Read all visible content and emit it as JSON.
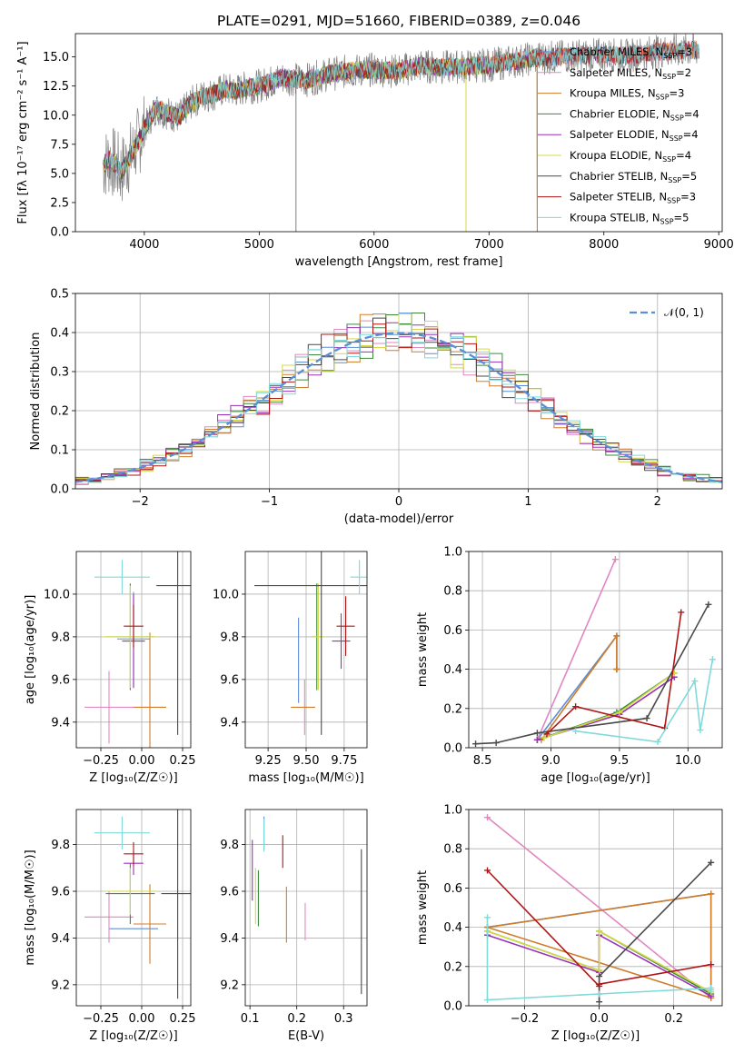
{
  "figure": {
    "title": "PLATE=0291, MJD=51660, FIBERID=0389, z=0.046"
  },
  "colors": {
    "Chabrier MILES": "#5b8ed6",
    "Salpeter MILES": "#e088c0",
    "Kroupa MILES": "#cf7d2c",
    "Chabrier ELODIE": "#3d8a3d",
    "Salpeter ELODIE": "#9b30b8",
    "Kroupa ELODIE": "#d4d94a",
    "Chabrier STELIB": "#4a4a4a",
    "Salpeter STELIB": "#b01616",
    "Kroupa STELIB": "#7fdada"
  },
  "chart_data": [
    {
      "type": "line",
      "title": "PLATE=0291, MJD=51660, FIBERID=0389, z=0.046",
      "xlabel": "wavelength [Angstrom, rest frame]",
      "ylabel": "Flux [fλ 10⁻¹⁷ erg cm⁻² s⁻¹ A⁻¹]",
      "xlim": [
        3400,
        9030
      ],
      "ylim": [
        0,
        17
      ],
      "xticks": [
        "4000",
        "5000",
        "6000",
        "7000",
        "8000",
        "9000"
      ],
      "yticks": [
        "0.0",
        "2.5",
        "5.0",
        "7.5",
        "10.0",
        "12.5",
        "15.0"
      ],
      "legend": "top-right",
      "spectrum_x": [
        3650,
        3700,
        3800,
        3900,
        4000,
        4100,
        4200,
        4300,
        4400,
        4500,
        4600,
        4700,
        4800,
        4900,
        5000,
        5200,
        5400,
        5600,
        5800,
        6000,
        6200,
        6400,
        6600,
        6800,
        7000,
        7200,
        7400,
        7600,
        7800,
        8000,
        8200,
        8400,
        8600,
        8800
      ],
      "spectrum_y": [
        5.8,
        6.2,
        5.2,
        6.8,
        8.8,
        10.6,
        10.2,
        9.8,
        11.0,
        11.6,
        11.8,
        12.2,
        12.1,
        12.4,
        12.5,
        13.2,
        13.0,
        13.5,
        13.8,
        13.9,
        13.8,
        14.2,
        14.1,
        14.2,
        14.3,
        14.6,
        14.9,
        15.0,
        15.1,
        15.2,
        15.1,
        15.4,
        15.5,
        15.6
      ],
      "model_end": 7420,
      "series": [
        {
          "name": "Chabrier MILES",
          "nssp": "3"
        },
        {
          "name": "Salpeter MILES",
          "nssp": "2"
        },
        {
          "name": "Kroupa MILES",
          "nssp": "3"
        },
        {
          "name": "Chabrier ELODIE",
          "nssp": "4"
        },
        {
          "name": "Salpeter ELODIE",
          "nssp": "4"
        },
        {
          "name": "Kroupa ELODIE",
          "nssp": "4"
        },
        {
          "name": "Chabrier STELIB",
          "nssp": "5"
        },
        {
          "name": "Salpeter STELIB",
          "nssp": "3"
        },
        {
          "name": "Kroupa STELIB",
          "nssp": "5"
        }
      ]
    },
    {
      "type": "histogram",
      "xlabel": "(data-model)/error",
      "ylabel": "Normed distribution",
      "xlim": [
        -2.5,
        2.5
      ],
      "ylim": [
        0,
        0.5
      ],
      "xticks": [
        "−2",
        "−1",
        "0",
        "1",
        "2"
      ],
      "yticks": [
        "0.0",
        "0.1",
        "0.2",
        "0.3",
        "0.4",
        "0.5"
      ],
      "legend_label": "𝒩(0, 1)",
      "bin_width": 0.1
    },
    {
      "type": "scatter",
      "xlabel": "Z [log₁₀(Z/Z☉)]",
      "ylabel": "age  [log₁₀(age/yr)]",
      "xlim": [
        -0.4,
        0.3
      ],
      "ylim": [
        9.28,
        10.2
      ],
      "xticks": [
        "−0.25",
        "0.00",
        "0.25"
      ],
      "yticks": [
        "9.4",
        "9.6",
        "9.8",
        "10.0"
      ],
      "points": [
        {
          "series": "Chabrier MILES",
          "x": -0.05,
          "y": 9.79,
          "xerr": 0.1,
          "yerr": 0.22
        },
        {
          "series": "Salpeter MILES",
          "x": -0.2,
          "y": 9.47,
          "xerr": 0.15,
          "yerr": 0.17
        },
        {
          "series": "Kroupa MILES",
          "x": 0.05,
          "y": 9.47,
          "xerr": 0.1,
          "yerr": 0.35
        },
        {
          "series": "Chabrier ELODIE",
          "x": -0.07,
          "y": 9.8,
          "xerr": 0.15,
          "yerr": 0.25
        },
        {
          "series": "Salpeter ELODIE",
          "x": -0.05,
          "y": 9.78,
          "xerr": 0.07,
          "yerr": 0.22
        },
        {
          "series": "Kroupa ELODIE",
          "x": -0.07,
          "y": 9.8,
          "xerr": 0.17,
          "yerr": 0.24
        },
        {
          "series": "Chabrier STELIB",
          "x": 0.22,
          "y": 10.04,
          "xerr": 0.13,
          "yerr": 0.7
        },
        {
          "series": "Salpeter STELIB",
          "x": -0.05,
          "y": 9.85,
          "xerr": 0.06,
          "yerr": 0.1
        },
        {
          "series": "Kroupa STELIB",
          "x": -0.12,
          "y": 10.08,
          "xerr": 0.17,
          "yerr": 0.08
        }
      ]
    },
    {
      "type": "scatter",
      "xlabel": "mass [log₁₀(M/M☉)]",
      "ylabel": "",
      "xlim": [
        9.1,
        9.9
      ],
      "ylim": [
        9.28,
        10.2
      ],
      "xticks": [
        "9.25",
        "9.50",
        "9.75"
      ],
      "yticks": [
        "9.4",
        "9.6",
        "9.8",
        "10.0"
      ],
      "points": [
        {
          "series": "Chabrier MILES",
          "x": 9.45,
          "y": 9.69,
          "xerr": 0.0,
          "yerr": 0.2
        },
        {
          "series": "Salpeter MILES",
          "x": 9.49,
          "y": 9.47,
          "xerr": 0.0,
          "yerr": 0.13
        },
        {
          "series": "Kroupa MILES",
          "x": 9.48,
          "y": 9.47,
          "xerr": 0.08,
          "yerr": 0.0
        },
        {
          "series": "Chabrier ELODIE",
          "x": 9.57,
          "y": 9.8,
          "xerr": 0.03,
          "yerr": 0.25
        },
        {
          "series": "Salpeter ELODIE",
          "x": 9.73,
          "y": 9.78,
          "xerr": 0.06,
          "yerr": 0.13
        },
        {
          "series": "Kroupa ELODIE",
          "x": 9.58,
          "y": 9.8,
          "xerr": 0.04,
          "yerr": 0.25
        },
        {
          "series": "Chabrier STELIB",
          "x": 9.6,
          "y": 10.04,
          "xerr": 0.44,
          "yerr": 0.7
        },
        {
          "series": "Salpeter STELIB",
          "x": 9.76,
          "y": 9.85,
          "xerr": 0.06,
          "yerr": 0.14
        },
        {
          "series": "Kroupa STELIB",
          "x": 9.85,
          "y": 10.08,
          "xerr": 0.06,
          "yerr": 0.08
        }
      ]
    },
    {
      "type": "line",
      "xlabel": "age  [log₁₀(age/yr)]",
      "ylabel": "mass weight",
      "xlim": [
        8.4,
        10.25
      ],
      "ylim": [
        0,
        1.0
      ],
      "xticks": [
        "8.5",
        "9.0",
        "9.5",
        "10.0"
      ],
      "yticks": [
        "0.0",
        "0.2",
        "0.4",
        "0.6",
        "0.8",
        "1.0"
      ],
      "series": [
        {
          "name": "Chabrier MILES",
          "x": [
            8.9,
            9.48,
            9.48,
            9.48
          ],
          "y": [
            0.04,
            0.57,
            0.4,
            0.4
          ]
        },
        {
          "name": "Salpeter MILES",
          "x": [
            8.9,
            9.47
          ],
          "y": [
            0.04,
            0.96
          ]
        },
        {
          "name": "Kroupa MILES",
          "x": [
            8.93,
            9.48,
            9.48,
            9.48
          ],
          "y": [
            0.04,
            0.57,
            0.4,
            0.4
          ]
        },
        {
          "name": "Chabrier ELODIE",
          "x": [
            8.9,
            9.48,
            9.9
          ],
          "y": [
            0.04,
            0.18,
            0.38
          ]
        },
        {
          "name": "Salpeter ELODIE",
          "x": [
            8.9,
            9.5,
            9.9
          ],
          "y": [
            0.04,
            0.17,
            0.36
          ]
        },
        {
          "name": "Kroupa ELODIE",
          "x": [
            8.95,
            9.5,
            9.9
          ],
          "y": [
            0.05,
            0.18,
            0.38
          ]
        },
        {
          "name": "Chabrier STELIB",
          "x": [
            8.45,
            8.6,
            8.9,
            9.7,
            10.15
          ],
          "y": [
            0.02,
            0.025,
            0.075,
            0.15,
            0.73
          ]
        },
        {
          "name": "Salpeter STELIB",
          "x": [
            8.97,
            9.18,
            9.83,
            9.95
          ],
          "y": [
            0.07,
            0.21,
            0.1,
            0.69
          ]
        },
        {
          "name": "Kroupa STELIB",
          "x": [
            9.18,
            9.78,
            10.05,
            10.09,
            10.18
          ],
          "y": [
            0.085,
            0.03,
            0.34,
            0.09,
            0.45
          ]
        }
      ]
    },
    {
      "type": "scatter",
      "xlabel": "Z [log₁₀(Z/Z☉)]",
      "ylabel": "mass [log₁₀(M/M☉)]",
      "xlim": [
        -0.4,
        0.3
      ],
      "ylim": [
        9.11,
        9.95
      ],
      "xticks": [
        "−0.25",
        "0.00",
        "0.25"
      ],
      "yticks": [
        "9.2",
        "9.4",
        "9.6",
        "9.8"
      ],
      "points": [
        {
          "series": "Chabrier MILES",
          "x": -0.05,
          "y": 9.44,
          "xerr": 0.15,
          "yerr": 0.0
        },
        {
          "series": "Salpeter MILES",
          "x": -0.2,
          "y": 9.49,
          "xerr": 0.15,
          "yerr": 0.11
        },
        {
          "series": "Kroupa MILES",
          "x": 0.05,
          "y": 9.46,
          "xerr": 0.1,
          "yerr": 0.17
        },
        {
          "series": "Chabrier ELODIE",
          "x": -0.07,
          "y": 9.59,
          "xerr": 0.15,
          "yerr": 0.13
        },
        {
          "series": "Salpeter ELODIE",
          "x": -0.05,
          "y": 9.72,
          "xerr": 0.06,
          "yerr": 0.05
        },
        {
          "series": "Kroupa ELODIE",
          "x": -0.07,
          "y": 9.6,
          "xerr": 0.16,
          "yerr": 0.1
        },
        {
          "series": "Chabrier STELIB",
          "x": 0.22,
          "y": 9.59,
          "xerr": 0.1,
          "yerr": 0.45
        },
        {
          "series": "Salpeter STELIB",
          "x": -0.05,
          "y": 9.76,
          "xerr": 0.06,
          "yerr": 0.05
        },
        {
          "series": "Kroupa STELIB",
          "x": -0.12,
          "y": 9.85,
          "xerr": 0.17,
          "yerr": 0.07
        }
      ]
    },
    {
      "type": "scatter",
      "xlabel": "E(B-V)",
      "ylabel": "",
      "xlim": [
        0.09,
        0.35
      ],
      "ylim": [
        9.11,
        9.95
      ],
      "xticks": [
        "0.1",
        "0.2",
        "0.3"
      ],
      "yticks": [
        "9.2",
        "9.4",
        "9.6",
        "9.8"
      ],
      "points": [
        {
          "series": "Chabrier MILES",
          "x": 0.13,
          "y": 9.85,
          "xerr": 0.0,
          "yerr": 0.07
        },
        {
          "series": "Salpeter MILES",
          "x": 0.218,
          "y": 9.47,
          "xerr": 0.0,
          "yerr": 0.08
        },
        {
          "series": "Kroupa MILES",
          "x": 0.178,
          "y": 9.5,
          "xerr": 0.0,
          "yerr": 0.12
        },
        {
          "series": "Chabrier ELODIE",
          "x": 0.118,
          "y": 9.57,
          "xerr": 0.0,
          "yerr": 0.12
        },
        {
          "series": "Salpeter ELODIE",
          "x": 0.105,
          "y": 9.69,
          "xerr": 0.0,
          "yerr": 0.13
        },
        {
          "series": "Kroupa ELODIE",
          "x": 0.112,
          "y": 9.58,
          "xerr": 0.0,
          "yerr": 0.12
        },
        {
          "series": "Chabrier STELIB",
          "x": 0.338,
          "y": 9.47,
          "xerr": 0.0,
          "yerr": 0.31
        },
        {
          "series": "Salpeter STELIB",
          "x": 0.17,
          "y": 9.77,
          "xerr": 0.0,
          "yerr": 0.07
        },
        {
          "series": "Kroupa STELIB",
          "x": 0.13,
          "y": 9.84,
          "xerr": 0.0,
          "yerr": 0.07
        }
      ]
    },
    {
      "type": "line",
      "xlabel": "Z [log₁₀(Z/Z☉)]",
      "ylabel": "mass weight",
      "xlim": [
        -0.35,
        0.33
      ],
      "ylim": [
        0,
        1.0
      ],
      "xticks": [
        "−0.2",
        "0.0",
        "0.2"
      ],
      "yticks": [
        "0.0",
        "0.2",
        "0.4",
        "0.6",
        "0.8",
        "1.0"
      ],
      "series": [
        {
          "name": "Chabrier MILES",
          "x": [
            -0.3,
            0.3,
            0.3
          ],
          "y": [
            0.4,
            0.57,
            0.04
          ]
        },
        {
          "name": "Salpeter MILES",
          "x": [
            -0.3,
            0.3
          ],
          "y": [
            0.96,
            0.04
          ]
        },
        {
          "name": "Kroupa MILES",
          "x": [
            -0.3,
            0.3,
            0.3,
            -0.3
          ],
          "y": [
            0.4,
            0.57,
            0.04,
            0.4
          ]
        },
        {
          "name": "Chabrier ELODIE",
          "x": [
            -0.3,
            0.0,
            0.0,
            0.3
          ],
          "y": [
            0.38,
            0.18,
            0.38,
            0.06
          ]
        },
        {
          "name": "Salpeter ELODIE",
          "x": [
            -0.3,
            0.0,
            0.0,
            0.3
          ],
          "y": [
            0.36,
            0.17,
            0.36,
            0.05
          ]
        },
        {
          "name": "Kroupa ELODIE",
          "x": [
            -0.3,
            0.0,
            0.0,
            0.3
          ],
          "y": [
            0.38,
            0.18,
            0.38,
            0.07
          ]
        },
        {
          "name": "Chabrier STELIB",
          "x": [
            0.0,
            0.0,
            0.3
          ],
          "y": [
            0.02,
            0.15,
            0.73
          ]
        },
        {
          "name": "Salpeter STELIB",
          "x": [
            -0.3,
            0.0,
            0.0,
            0.3
          ],
          "y": [
            0.69,
            0.1,
            0.11,
            0.21
          ]
        },
        {
          "name": "Kroupa STELIB",
          "x": [
            -0.3,
            -0.3,
            0.0,
            0.3,
            0.3
          ],
          "y": [
            0.45,
            0.03,
            0.06,
            0.09,
            0.08
          ]
        }
      ]
    }
  ]
}
